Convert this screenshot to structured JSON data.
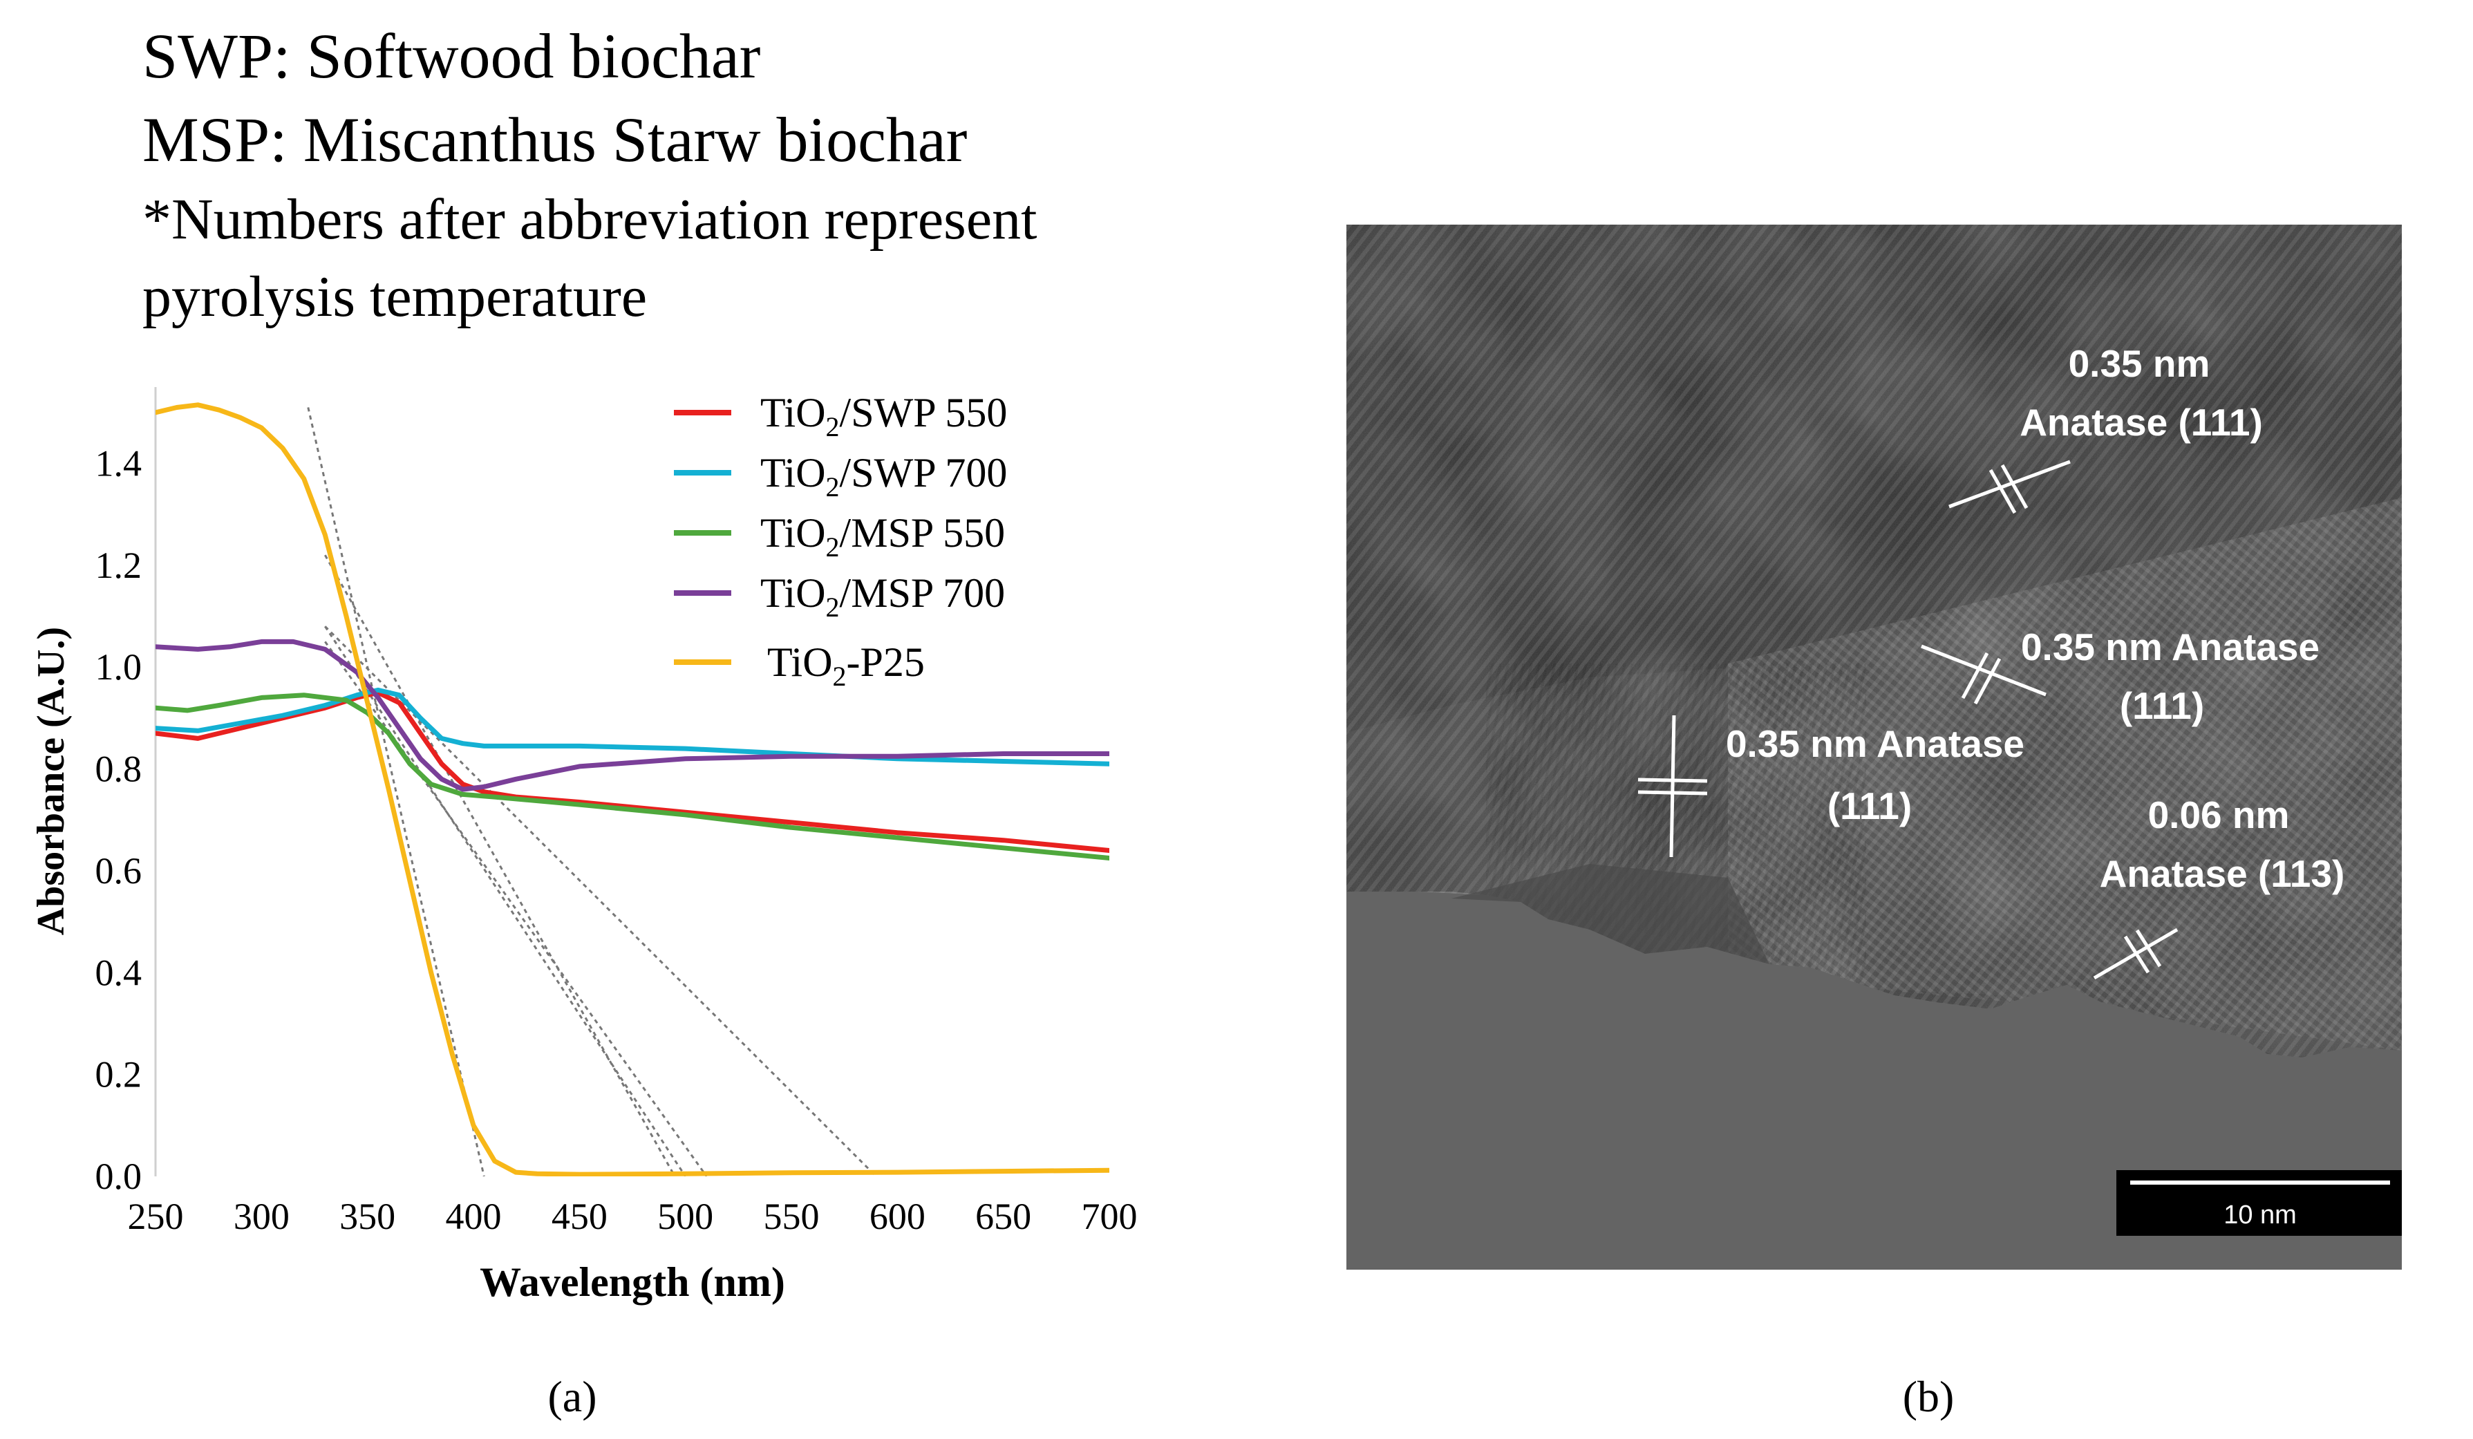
{
  "header": {
    "line1": "SWP: Softwood biochar",
    "line2": "MSP: Miscanthus Starw biochar",
    "line3": "*Numbers after abbreviation represent",
    "line4": "pyrolysis temperature"
  },
  "panel_labels": {
    "a": "(a)",
    "b": "(b)"
  },
  "chart_data": {
    "type": "line",
    "title": "",
    "xlabel": "Wavelength (nm)",
    "ylabel": "Absorbance  (A.U.)",
    "xlim": [
      250,
      700
    ],
    "ylim": [
      0.0,
      1.55
    ],
    "xticks": [
      250,
      300,
      350,
      400,
      450,
      500,
      550,
      600,
      650,
      700
    ],
    "yticks": [
      0.0,
      0.2,
      0.4,
      0.6,
      0.8,
      1.0,
      1.2,
      1.4
    ],
    "ytick_labels": [
      "0.0",
      "0.2",
      "0.4",
      "0.6",
      "0.8",
      "1.0",
      "1.2",
      "1.4"
    ],
    "grid": false,
    "legend_position": "top-right",
    "series": [
      {
        "name": "TiO2/SWP  550",
        "legend_parts": [
          "TiO",
          "2",
          "/SWP  550"
        ],
        "color": "#e8211f",
        "x": [
          250,
          270,
          290,
          310,
          330,
          345,
          355,
          365,
          375,
          385,
          395,
          405,
          420,
          450,
          500,
          550,
          600,
          650,
          700
        ],
        "y": [
          0.87,
          0.86,
          0.88,
          0.9,
          0.92,
          0.94,
          0.95,
          0.93,
          0.87,
          0.81,
          0.77,
          0.755,
          0.745,
          0.735,
          0.715,
          0.695,
          0.675,
          0.66,
          0.64
        ]
      },
      {
        "name": "TiO2/SWP  700",
        "legend_parts": [
          "TiO",
          "2",
          "/SWP  700"
        ],
        "color": "#14b0d3",
        "x": [
          250,
          270,
          290,
          310,
          330,
          345,
          355,
          365,
          375,
          385,
          395,
          405,
          450,
          500,
          550,
          600,
          650,
          700
        ],
        "y": [
          0.88,
          0.875,
          0.89,
          0.905,
          0.925,
          0.945,
          0.955,
          0.945,
          0.9,
          0.86,
          0.85,
          0.845,
          0.845,
          0.84,
          0.83,
          0.82,
          0.815,
          0.81
        ]
      },
      {
        "name": "TiO2/MSP  550",
        "legend_parts": [
          "TiO",
          "2",
          "/MSP  550"
        ],
        "color": "#4fa83d",
        "x": [
          250,
          265,
          280,
          300,
          320,
          340,
          350,
          360,
          370,
          380,
          395,
          410,
          450,
          500,
          550,
          600,
          650,
          700
        ],
        "y": [
          0.92,
          0.915,
          0.925,
          0.94,
          0.945,
          0.935,
          0.91,
          0.87,
          0.81,
          0.77,
          0.75,
          0.745,
          0.73,
          0.71,
          0.685,
          0.665,
          0.645,
          0.625
        ]
      },
      {
        "name": "TiO2/MSP  700",
        "legend_parts": [
          "TiO",
          "2",
          "/MSP  700"
        ],
        "color": "#7a3f98",
        "x": [
          250,
          270,
          285,
          300,
          315,
          330,
          345,
          355,
          365,
          375,
          385,
          395,
          405,
          420,
          450,
          500,
          550,
          600,
          650,
          700
        ],
        "y": [
          1.04,
          1.035,
          1.04,
          1.05,
          1.05,
          1.035,
          0.99,
          0.94,
          0.88,
          0.82,
          0.78,
          0.76,
          0.765,
          0.78,
          0.805,
          0.82,
          0.825,
          0.825,
          0.83,
          0.83
        ]
      },
      {
        "name": "TiO2-P25",
        "legend_parts": [
          "TiO",
          "2",
          "-P25"
        ],
        "color": "#f7b718",
        "x": [
          250,
          260,
          270,
          280,
          290,
          300,
          310,
          320,
          330,
          340,
          350,
          360,
          370,
          380,
          390,
          400,
          410,
          420,
          430,
          450,
          500,
          550,
          600,
          650,
          700
        ],
        "y": [
          1.5,
          1.51,
          1.515,
          1.505,
          1.49,
          1.47,
          1.43,
          1.37,
          1.26,
          1.1,
          0.93,
          0.76,
          0.58,
          0.4,
          0.24,
          0.1,
          0.03,
          0.008,
          0.005,
          0.004,
          0.005,
          0.007,
          0.008,
          0.01,
          0.012
        ]
      }
    ],
    "tangent_lines": [
      {
        "x": [
          322,
          405
        ],
        "y": [
          1.51,
          0.0
        ]
      },
      {
        "x": [
          330,
          495
        ],
        "y": [
          1.22,
          0.0
        ]
      },
      {
        "x": [
          330,
          510
        ],
        "y": [
          1.05,
          0.0
        ]
      },
      {
        "x": [
          330,
          590
        ],
        "y": [
          1.08,
          0.0
        ]
      },
      {
        "x": [
          330,
          500
        ],
        "y": [
          1.08,
          0.0
        ]
      }
    ]
  },
  "tem_image": {
    "annotations": [
      {
        "line1": "0.35 nm",
        "line2": "Anatase (111)"
      },
      {
        "line1": "0.35 nm Anatase",
        "line2": "(111)"
      },
      {
        "line1": "0.35 nm Anatase",
        "line2": "(111)"
      },
      {
        "line1": "0.06 nm",
        "line2": "Anatase (113)"
      }
    ],
    "scale_bar_label": "10 nm"
  }
}
